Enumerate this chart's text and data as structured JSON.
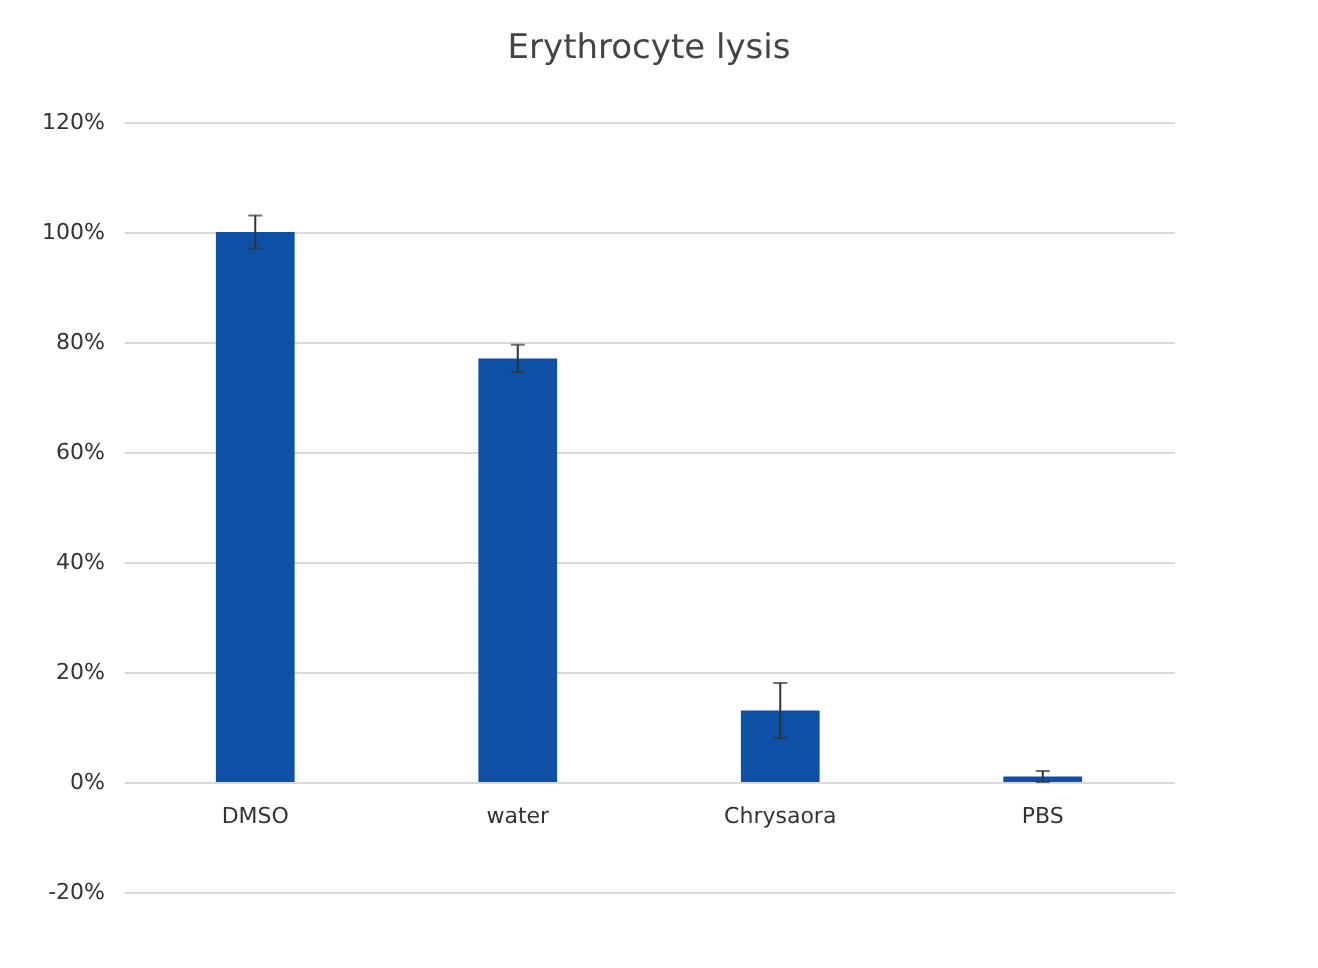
{
  "chart_data": {
    "type": "bar",
    "title": "Erythrocyte lysis",
    "categories": [
      "DMSO",
      "water",
      "Chrysaora",
      "PBS"
    ],
    "values": [
      100,
      77,
      13,
      1
    ],
    "errors": [
      3,
      2.5,
      5,
      1
    ],
    "color": "#0d50a6",
    "ylim": [
      -20,
      120
    ],
    "yticks": [
      {
        "value": -20,
        "label": "-20%"
      },
      {
        "value": 0,
        "label": "0%"
      },
      {
        "value": 20,
        "label": "20%"
      },
      {
        "value": 40,
        "label": "40%"
      },
      {
        "value": 60,
        "label": "60%"
      },
      {
        "value": 80,
        "label": "80%"
      },
      {
        "value": 100,
        "label": "100%"
      },
      {
        "value": 120,
        "label": "120%"
      }
    ],
    "grid": "y"
  }
}
